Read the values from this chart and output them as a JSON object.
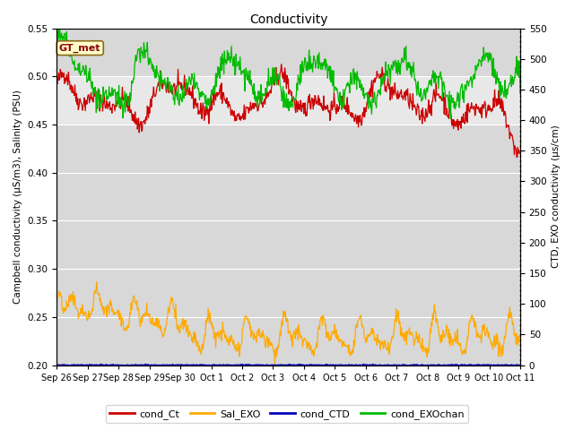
{
  "title": "Conductivity",
  "ylabel_left": "Campbell conductivity (μS/m3), Salinity (PSU)",
  "ylabel_right": "CTD, EXO conductivity (μs/cm)",
  "ylim_left": [
    0.2,
    0.55
  ],
  "ylim_right": [
    0,
    550
  ],
  "yticks_left": [
    0.2,
    0.25,
    0.3,
    0.35,
    0.4,
    0.45,
    0.5,
    0.55
  ],
  "yticks_right": [
    0,
    50,
    100,
    150,
    200,
    250,
    300,
    350,
    400,
    450,
    500,
    550
  ],
  "x_tick_labels": [
    "Sep 26",
    "Sep 27",
    "Sep 28",
    "Sep 29",
    "Sep 30",
    "Oct 1",
    "Oct 2",
    "Oct 3",
    "Oct 4",
    "Oct 5",
    "Oct 6",
    "Oct 7",
    "Oct 8",
    "Oct 9",
    "Oct 10",
    "Oct 11"
  ],
  "shade_band": [
    0.45,
    0.5
  ],
  "legend_label": "GT_met",
  "legend_box_color": "#ffffcc",
  "legend_box_border": "#8B6914",
  "bg_color": "#d8d8d8",
  "shade_color": "#e8e8e8",
  "series_colors": {
    "cond_Ct": "#cc0000",
    "Sal_EXO": "#ffaa00",
    "cond_CTD": "#0000bb",
    "cond_EXOchan": "#00bb00"
  },
  "figsize": [
    6.4,
    4.8
  ],
  "dpi": 100
}
